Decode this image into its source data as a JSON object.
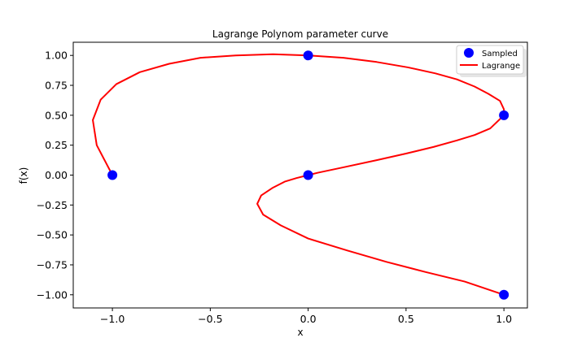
{
  "chart_data": {
    "type": "line",
    "title": "Lagrange Polynom parameter curve",
    "xlabel": "x",
    "ylabel": "f(x)",
    "xlim": [
      -1.2,
      1.12
    ],
    "ylim": [
      -1.11,
      1.11
    ],
    "xticks": [
      -1.0,
      -0.5,
      0.0,
      0.5,
      1.0
    ],
    "xtick_labels": [
      "−1.0",
      "−0.5",
      "0.0",
      "0.5",
      "1.0"
    ],
    "yticks": [
      -1.0,
      -0.75,
      -0.5,
      -0.25,
      0.0,
      0.25,
      0.5,
      0.75,
      1.0
    ],
    "ytick_labels": [
      "−1.00",
      "−0.75",
      "−0.50",
      "−0.25",
      "0.00",
      "0.25",
      "0.50",
      "0.75",
      "1.00"
    ],
    "grid": false,
    "legend_position": "upper right",
    "series": [
      {
        "name": "Sampled",
        "kind": "scatter",
        "color": "#0000ff",
        "points": [
          [
            -1.0,
            0.0
          ],
          [
            0.0,
            1.0
          ],
          [
            1.0,
            0.5
          ],
          [
            0.0,
            0.0
          ],
          [
            1.0,
            -1.0
          ]
        ]
      },
      {
        "name": "Lagrange",
        "kind": "line",
        "color": "#ff0000",
        "points": [
          [
            -1.0,
            0.0
          ],
          [
            -1.08,
            0.25
          ],
          [
            -1.1,
            0.46
          ],
          [
            -1.06,
            0.63
          ],
          [
            -0.98,
            0.76
          ],
          [
            -0.86,
            0.86
          ],
          [
            -0.71,
            0.93
          ],
          [
            -0.55,
            0.98
          ],
          [
            -0.37,
            1.0
          ],
          [
            -0.18,
            1.01
          ],
          [
            0.0,
            1.0
          ],
          [
            0.18,
            0.98
          ],
          [
            0.35,
            0.945
          ],
          [
            0.51,
            0.9
          ],
          [
            0.65,
            0.85
          ],
          [
            0.76,
            0.8
          ],
          [
            0.85,
            0.74
          ],
          [
            0.92,
            0.68
          ],
          [
            0.98,
            0.62
          ],
          [
            1.0,
            0.55
          ],
          [
            1.0,
            0.5
          ],
          [
            0.93,
            0.39
          ],
          [
            0.85,
            0.335
          ],
          [
            0.76,
            0.29
          ],
          [
            0.64,
            0.235
          ],
          [
            0.5,
            0.18
          ],
          [
            0.35,
            0.125
          ],
          [
            0.18,
            0.065
          ],
          [
            0.05,
            0.02
          ],
          [
            0.0,
            0.0
          ],
          [
            -0.06,
            -0.025
          ],
          [
            -0.12,
            -0.055
          ],
          [
            -0.18,
            -0.105
          ],
          [
            -0.24,
            -0.17
          ],
          [
            -0.26,
            -0.24
          ],
          [
            -0.23,
            -0.33
          ],
          [
            -0.14,
            -0.42
          ],
          [
            0.0,
            -0.53
          ],
          [
            0.2,
            -0.63
          ],
          [
            0.4,
            -0.725
          ],
          [
            0.6,
            -0.81
          ],
          [
            0.8,
            -0.89
          ],
          [
            1.0,
            -1.0
          ]
        ]
      }
    ]
  }
}
